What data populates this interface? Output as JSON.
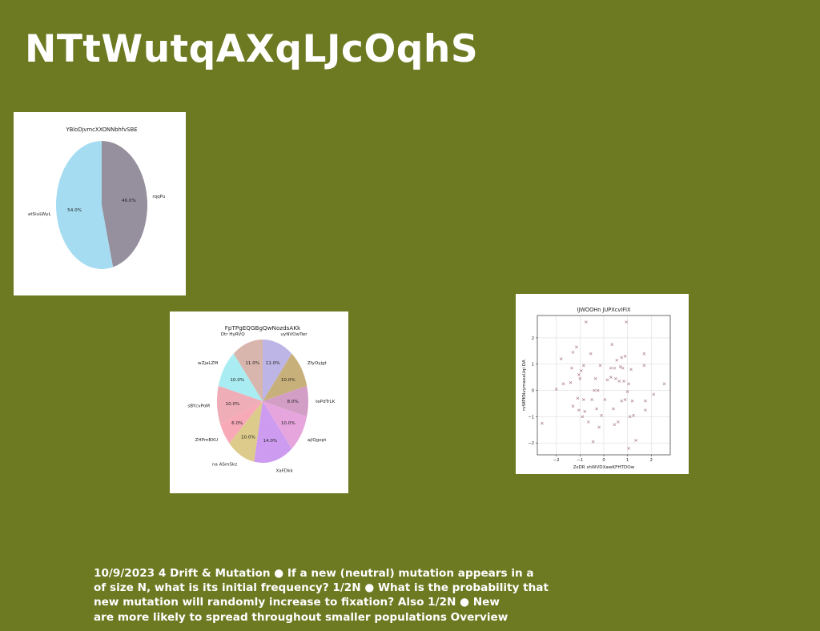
{
  "slide": {
    "title": "NTtWutqAXqLJcOqhS",
    "body_lines": [
      "10/9/2023 4 Drift & Mutation ● If a new (neutral) mutation appears in a",
      "of size N, what is its initial frequency? 1/2N ● What is the probability that",
      "new mutation will randomly increase to fixation? Also 1/2N ● New",
      "are more likely to spread throughout smaller populations Overview"
    ]
  },
  "colors": {
    "background": "#6d7a22",
    "text": "#ffffff"
  },
  "chart_data": [
    {
      "type": "pie",
      "title": "YBloDjvmcXXONNbhfvSBE",
      "labels": [
        "atSiuLWyL",
        "rqqPu"
      ],
      "values": [
        54.0,
        46.0
      ],
      "value_labels": [
        "54.0%",
        "46.0%"
      ],
      "colors": [
        "#a5dcf2",
        "#958f9e"
      ],
      "start_angle_deg": 90
    },
    {
      "type": "pie",
      "title": "FpTPgEQGBgQwNozdsAKk",
      "labels": [
        "Dtr HyRVQ",
        "wZjaLZM",
        "sBYcvPoM",
        "ZHPmBXU",
        "na ASmSkz",
        "XaFDkk",
        "ajiQgopt",
        "tePdTrLK",
        "ZfyOyjgt",
        "uyNVOwTwr"
      ],
      "values": [
        11.0,
        10.0,
        10.0,
        6.0,
        10.0,
        14.0,
        10.0,
        8.0,
        10.0,
        11.0
      ],
      "value_labels": [
        "11.0%",
        "10.0%",
        "10.0%",
        "6.0%",
        "10.0%",
        "14.0%",
        "10.0%",
        "8.0%",
        "10.0%",
        "11.0%"
      ],
      "colors": [
        "#d9b6ad",
        "#a9edf2",
        "#efadb7",
        "#f8a9b8",
        "#dccb8a",
        "#cd9bf0",
        "#e6a5dc",
        "#d39ec6",
        "#c8b07a",
        "#bdb5e5"
      ],
      "start_angle_deg": 90
    },
    {
      "type": "scatter",
      "title": "IJWOOHn JUPXcvIFIX",
      "xlabel": "ZsDR shWVDXawKFHTDOw",
      "ylabel": "rvWPKNvymaeaUqi DA",
      "xlim": [
        -2.8,
        2.8
      ],
      "ylim": [
        -2.45,
        2.85
      ],
      "xticks": [
        -2,
        -1,
        0,
        1,
        2
      ],
      "yticks": [
        -2,
        -1,
        0,
        1,
        2
      ],
      "grid": true,
      "marker_color": "#b0808e",
      "points": [
        [
          -2.6,
          -1.25
        ],
        [
          -2.0,
          0.05
        ],
        [
          -1.8,
          1.2
        ],
        [
          -1.7,
          0.25
        ],
        [
          -1.4,
          0.3
        ],
        [
          -1.35,
          0.85
        ],
        [
          -1.3,
          1.45
        ],
        [
          -1.3,
          -0.6
        ],
        [
          -1.15,
          1.65
        ],
        [
          -1.1,
          -0.3
        ],
        [
          -1.05,
          0.6
        ],
        [
          -1.05,
          -0.75
        ],
        [
          -1.0,
          0.45
        ],
        [
          -0.95,
          0.75
        ],
        [
          -0.9,
          -1.0
        ],
        [
          -0.85,
          0.95
        ],
        [
          -0.85,
          -0.35
        ],
        [
          -0.8,
          -0.8
        ],
        [
          -0.75,
          2.6
        ],
        [
          -0.65,
          -1.2
        ],
        [
          -0.55,
          1.4
        ],
        [
          -0.5,
          -0.35
        ],
        [
          -0.45,
          -1.95
        ],
        [
          -0.4,
          0.0
        ],
        [
          -0.35,
          0.45
        ],
        [
          -0.3,
          -0.7
        ],
        [
          -0.25,
          0.0
        ],
        [
          -0.2,
          -1.4
        ],
        [
          -0.15,
          0.95
        ],
        [
          -0.1,
          -0.95
        ],
        [
          0.05,
          -0.35
        ],
        [
          0.15,
          0.4
        ],
        [
          0.3,
          0.85
        ],
        [
          0.3,
          0.5
        ],
        [
          0.35,
          1.75
        ],
        [
          0.4,
          -0.7
        ],
        [
          0.45,
          0.85
        ],
        [
          0.45,
          -1.3
        ],
        [
          0.5,
          0.45
        ],
        [
          0.55,
          1.15
        ],
        [
          0.6,
          -1.2
        ],
        [
          0.65,
          0.35
        ],
        [
          0.7,
          0.9
        ],
        [
          0.75,
          1.25
        ],
        [
          0.75,
          -0.4
        ],
        [
          0.8,
          0.85
        ],
        [
          0.85,
          0.35
        ],
        [
          0.9,
          -0.35
        ],
        [
          0.9,
          1.3
        ],
        [
          0.95,
          2.6
        ],
        [
          1.0,
          -0.05
        ],
        [
          1.05,
          0.25
        ],
        [
          1.05,
          -2.2
        ],
        [
          1.1,
          -1.0
        ],
        [
          1.15,
          0.8
        ],
        [
          1.2,
          -0.4
        ],
        [
          1.25,
          -0.95
        ],
        [
          1.35,
          -1.9
        ],
        [
          1.7,
          1.4
        ],
        [
          1.7,
          0.95
        ],
        [
          1.75,
          -0.75
        ],
        [
          1.75,
          -0.4
        ],
        [
          2.1,
          -0.15
        ],
        [
          2.55,
          0.25
        ]
      ]
    }
  ]
}
